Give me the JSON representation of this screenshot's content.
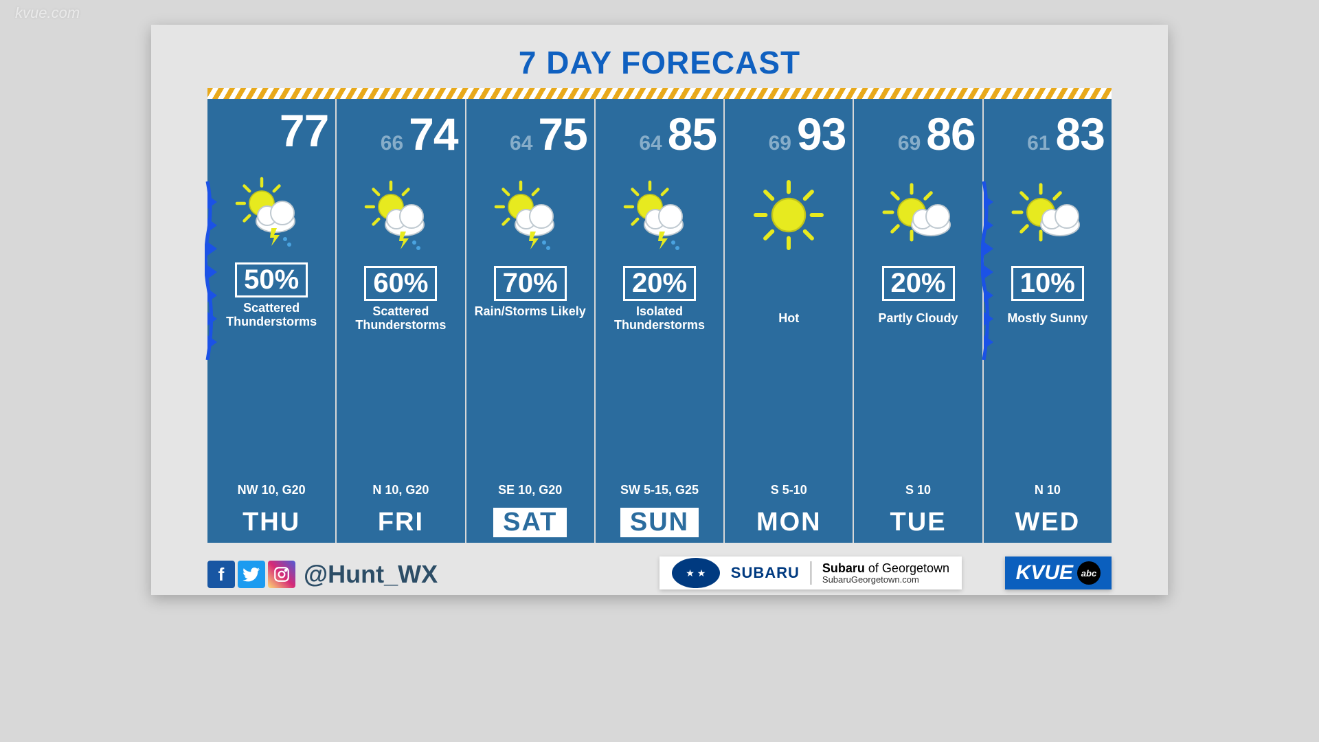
{
  "watermark": "kvue.com",
  "title": "7 DAY FORECAST",
  "colors": {
    "title": "#0f60c0",
    "card_bg": "#2b6c9e",
    "low_text": "#a6c3d8",
    "stripe_a": "#e8a91b",
    "stripe_b": "#ffffff",
    "weekend_bg": "#ffffff",
    "weekend_text": "#2b6c9e",
    "kvue_bg": "#0b5fbe",
    "front": "#1b52e6",
    "handle": "#2c4d66"
  },
  "days": [
    {
      "name": "THU",
      "high": "77",
      "low": "",
      "precip": "50%",
      "cond": "Scattered Thunderstorms",
      "wind": "NW 10, G20",
      "icon": "tstorm",
      "weekend": false,
      "front": true
    },
    {
      "name": "FRI",
      "high": "74",
      "low": "66",
      "precip": "60%",
      "cond": "Scattered Thunderstorms",
      "wind": "N 10, G20",
      "icon": "tstorm",
      "weekend": false,
      "front": false
    },
    {
      "name": "SAT",
      "high": "75",
      "low": "64",
      "precip": "70%",
      "cond": "Rain/Storms Likely",
      "wind": "SE 10, G20",
      "icon": "tstorm",
      "weekend": true,
      "front": false
    },
    {
      "name": "SUN",
      "high": "85",
      "low": "64",
      "precip": "20%",
      "cond": "Isolated Thunderstorms",
      "wind": "SW 5-15, G25",
      "icon": "tstorm",
      "weekend": true,
      "front": false
    },
    {
      "name": "MON",
      "high": "93",
      "low": "69",
      "precip": "",
      "cond": "Hot",
      "wind": "S 5-10",
      "icon": "sunny",
      "weekend": false,
      "front": false
    },
    {
      "name": "TUE",
      "high": "86",
      "low": "69",
      "precip": "20%",
      "cond": "Partly Cloudy",
      "wind": "S 10",
      "icon": "partly",
      "weekend": false,
      "front": false
    },
    {
      "name": "WED",
      "high": "83",
      "low": "61",
      "precip": "10%",
      "cond": "Mostly Sunny",
      "wind": "N 10",
      "icon": "partly",
      "weekend": false,
      "front": true
    }
  ],
  "social": {
    "handle": "@Hunt_WX"
  },
  "sponsor": {
    "brand": "SUBARU",
    "line1": "Subaru of Georgetown",
    "line2": "SubaruGeorgetown.com"
  },
  "station": {
    "name": "KVUE",
    "network": "abc"
  },
  "icons": {
    "sun_fill": "#e7ea1f",
    "sun_stroke": "#c1c51b",
    "cloud_fill": "#ffffff",
    "cloud_stroke": "#bfc9d0",
    "bolt": "#e7ea1f",
    "rain": "#4aa3e0"
  }
}
